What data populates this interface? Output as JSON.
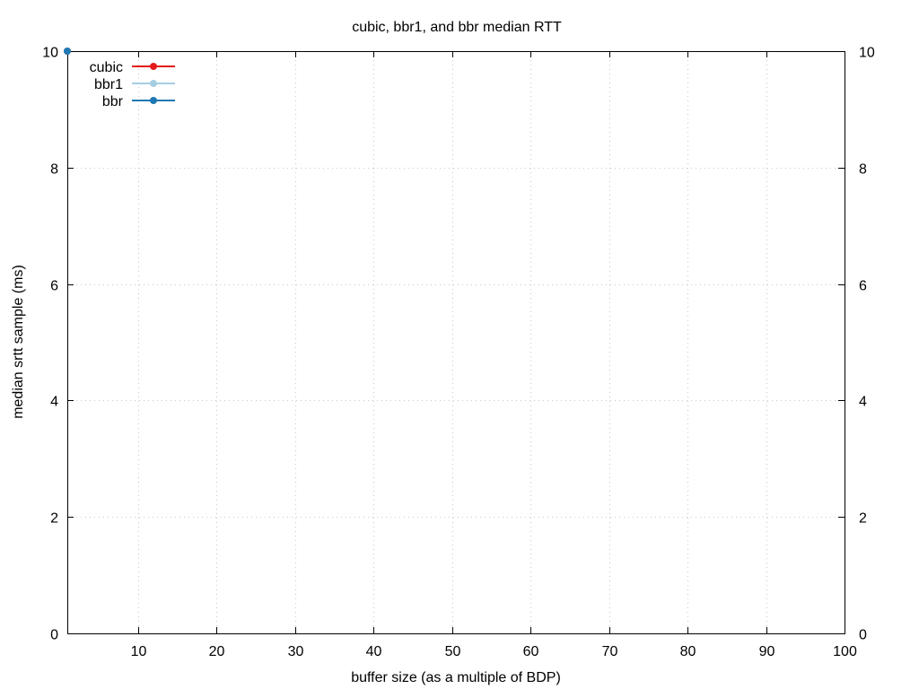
{
  "chart_data": {
    "type": "line",
    "title": "cubic, bbr1, and bbr median RTT",
    "xlabel": "buffer size (as a multiple of BDP)",
    "ylabel": "median srtt sample (ms)",
    "xlim": [
      1,
      100
    ],
    "ylim": [
      0,
      10
    ],
    "x_ticks": [
      10,
      20,
      30,
      40,
      50,
      60,
      70,
      80,
      90,
      100
    ],
    "y_ticks": [
      0,
      2,
      4,
      6,
      8,
      10
    ],
    "y2_ticks": [
      0,
      2,
      4,
      6,
      8,
      10
    ],
    "grid": true,
    "legend_position": "top-left",
    "series": [
      {
        "name": "cubic",
        "color": "#e41a1c",
        "points": [
          [
            1,
            10
          ]
        ]
      },
      {
        "name": "bbr1",
        "color": "#a6cee3",
        "points": [
          [
            1,
            10
          ]
        ]
      },
      {
        "name": "bbr",
        "color": "#1f78b4",
        "points": [
          [
            1,
            10
          ]
        ]
      }
    ]
  }
}
